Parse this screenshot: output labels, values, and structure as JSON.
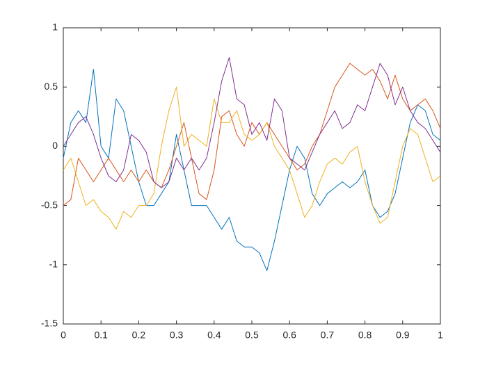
{
  "chart_data": {
    "type": "line",
    "x": [
      0,
      0.02,
      0.04,
      0.06,
      0.08,
      0.1,
      0.12,
      0.14,
      0.16,
      0.18,
      0.2,
      0.22,
      0.24,
      0.26,
      0.28,
      0.3,
      0.32,
      0.34,
      0.36,
      0.38,
      0.4,
      0.42,
      0.44,
      0.46,
      0.48,
      0.5,
      0.52,
      0.54,
      0.56,
      0.58,
      0.6,
      0.62,
      0.64,
      0.66,
      0.68,
      0.7,
      0.72,
      0.74,
      0.76,
      0.78,
      0.8,
      0.82,
      0.84,
      0.86,
      0.88,
      0.9,
      0.92,
      0.94,
      0.96,
      0.98,
      1
    ],
    "series": [
      {
        "color": "#0072BD",
        "values": [
          -0.1,
          0.2,
          0.3,
          0.2,
          0.65,
          0.0,
          -0.1,
          0.4,
          0.3,
          0,
          -0.3,
          -0.5,
          -0.5,
          -0.4,
          -0.3,
          0.1,
          -0.2,
          -0.5,
          -0.5,
          -0.5,
          -0.6,
          -0.7,
          -0.6,
          -0.8,
          -0.85,
          -0.85,
          -0.9,
          -1.05,
          -0.8,
          -0.5,
          -0.2,
          0,
          -0.1,
          -0.4,
          -0.5,
          -0.4,
          -0.35,
          -0.3,
          -0.35,
          -0.3,
          -0.2,
          -0.5,
          -0.6,
          -0.55,
          -0.4,
          -0.1,
          0.2,
          0.35,
          0.3,
          0.1,
          0.05
        ]
      },
      {
        "color": "#D95319",
        "values": [
          -0.5,
          -0.45,
          -0.1,
          -0.2,
          -0.3,
          -0.2,
          -0.1,
          -0.2,
          -0.3,
          -0.2,
          -0.3,
          -0.2,
          -0.3,
          -0.35,
          -0.2,
          0,
          0.2,
          -0.1,
          -0.4,
          -0.45,
          -0.2,
          0.25,
          0.3,
          0.1,
          0,
          0.2,
          0.1,
          0.2,
          0.1,
          0,
          -0.1,
          -0.2,
          -0.15,
          0,
          0.1,
          0.3,
          0.5,
          0.6,
          0.7,
          0.65,
          0.6,
          0.65,
          0.55,
          0.4,
          0.6,
          0.4,
          0.3,
          0.35,
          0.4,
          0.3,
          0.15
        ]
      },
      {
        "color": "#EDB120",
        "values": [
          -0.2,
          -0.1,
          -0.3,
          -0.5,
          -0.45,
          -0.55,
          -0.6,
          -0.7,
          -0.55,
          -0.6,
          -0.5,
          -0.5,
          -0.4,
          0,
          0.3,
          0.5,
          0,
          0.1,
          0.05,
          0,
          0.4,
          0.2,
          0.2,
          0.3,
          0.1,
          0.05,
          0.1,
          0.2,
          0,
          -0.1,
          -0.2,
          -0.4,
          -0.6,
          -0.5,
          -0.3,
          -0.15,
          -0.1,
          -0.15,
          -0.05,
          0,
          -0.3,
          -0.5,
          -0.65,
          -0.6,
          -0.3,
          0,
          0.15,
          0.1,
          -0.1,
          -0.3,
          -0.25
        ]
      },
      {
        "color": "#7E2F8E",
        "values": [
          0,
          0.1,
          0.2,
          0.25,
          0.1,
          -0.1,
          -0.25,
          -0.3,
          -0.2,
          0.1,
          0.05,
          -0.05,
          -0.3,
          -0.35,
          -0.3,
          -0.1,
          -0.2,
          -0.1,
          -0.2,
          -0.1,
          0.2,
          0.55,
          0.75,
          0.4,
          0.35,
          0.1,
          0.2,
          0.05,
          0.4,
          0.3,
          -0.1,
          -0.15,
          -0.2,
          -0.05,
          0.1,
          0.2,
          0.3,
          0.15,
          0.2,
          0.35,
          0.3,
          0.5,
          0.7,
          0.6,
          0.35,
          0.5,
          0.3,
          0.2,
          0.15,
          0.05,
          -0.05
        ]
      }
    ],
    "xlim": [
      0,
      1
    ],
    "xticks": [
      0,
      0.1,
      0.2,
      0.3,
      0.4,
      0.5,
      0.6,
      0.7,
      0.8,
      0.9,
      1
    ],
    "ylim": [
      -1.5,
      1
    ],
    "yticks": [
      -1.5,
      -1,
      -0.5,
      0,
      0.5,
      1
    ],
    "grid": false
  }
}
